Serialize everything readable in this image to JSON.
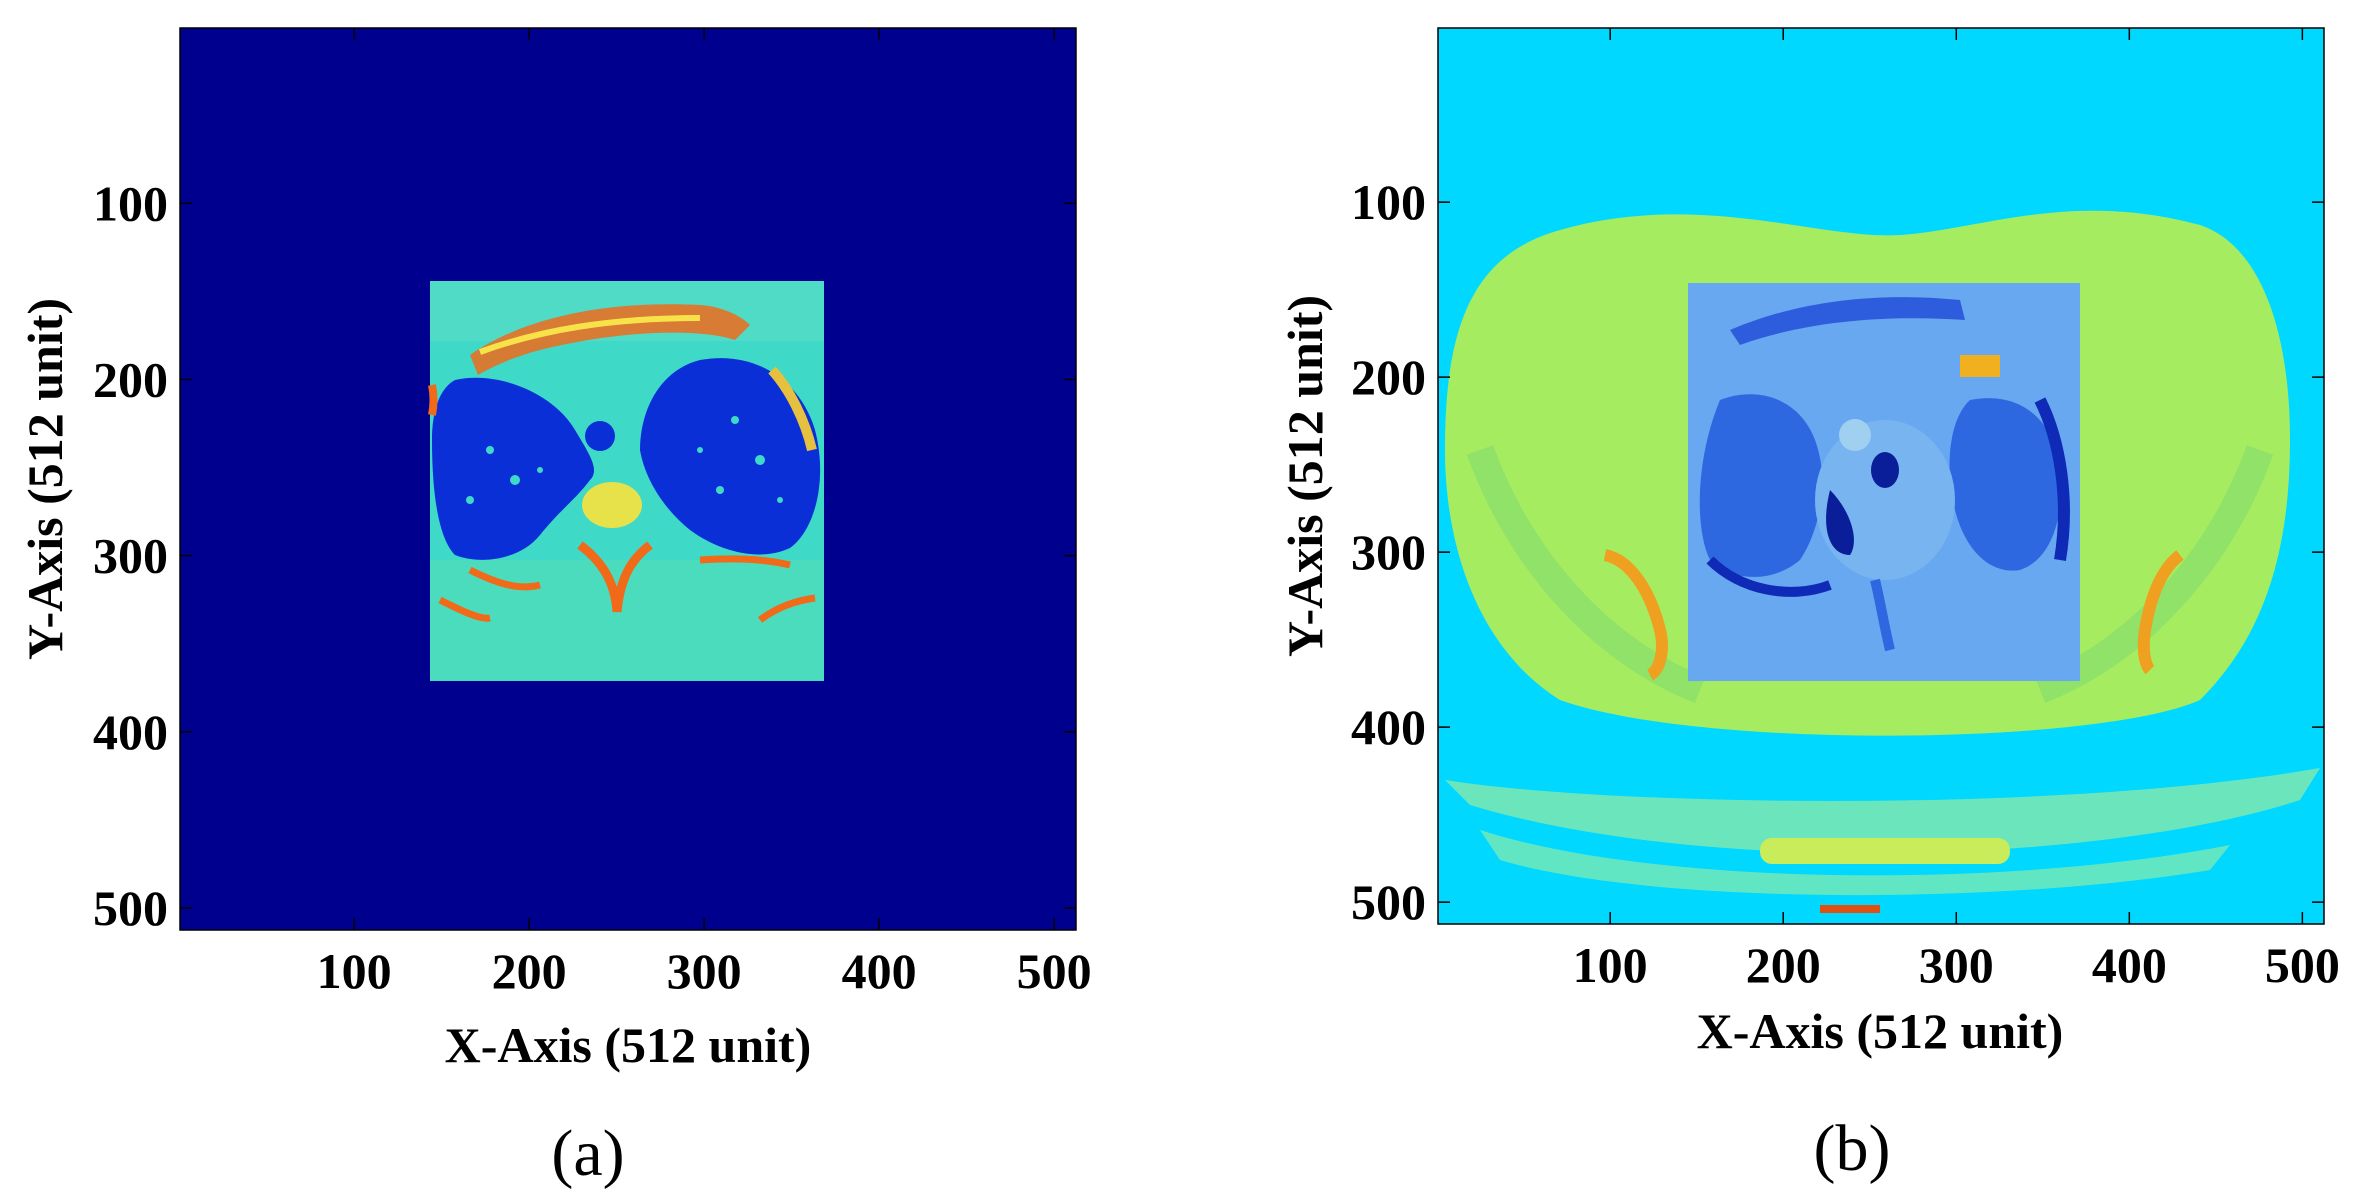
{
  "chart_data": [
    {
      "type": "heatmap",
      "panel_label": "(a)",
      "xlabel": "X-Axis (512 unit)",
      "ylabel": "Y-Axis (512 unit)",
      "xlim": [
        1,
        512
      ],
      "ylim": [
        1,
        512
      ],
      "y_inverted": true,
      "xticks": [
        100,
        200,
        300,
        400,
        500
      ],
      "yticks": [
        100,
        200,
        300,
        400,
        500
      ],
      "colormap": "jet",
      "background_color": "#00008f",
      "inset_region": {
        "x": [
          144,
          369
        ],
        "y": [
          144,
          369
        ],
        "content": "cropped chest CT slice"
      },
      "colors": {
        "inset_base": "#3fd9c8",
        "lung": "#0a2fd6",
        "bone": "#f06a1a",
        "soft_tissue": "#e8e24a"
      }
    },
    {
      "type": "heatmap",
      "panel_label": "(b)",
      "xlabel": "X-Axis (512 unit)",
      "ylabel": "Y-Axis (512 unit)",
      "xlim": [
        1,
        512
      ],
      "ylim": [
        1,
        512
      ],
      "y_inverted": true,
      "xticks": [
        100,
        200,
        300,
        400,
        500
      ],
      "yticks": [
        100,
        200,
        300,
        400,
        500
      ],
      "colormap": "jet",
      "background_color": "#00d8ff",
      "inset_region": {
        "x": [
          144,
          369
        ],
        "y": [
          144,
          369
        ],
        "content": "embedded CT slice"
      },
      "colors": {
        "body": "#a6ec60",
        "inset_base": "#5fa0f0",
        "lung": "#1e4ad8",
        "bone": "#f0a020",
        "table": "#7ee8b0"
      }
    }
  ]
}
